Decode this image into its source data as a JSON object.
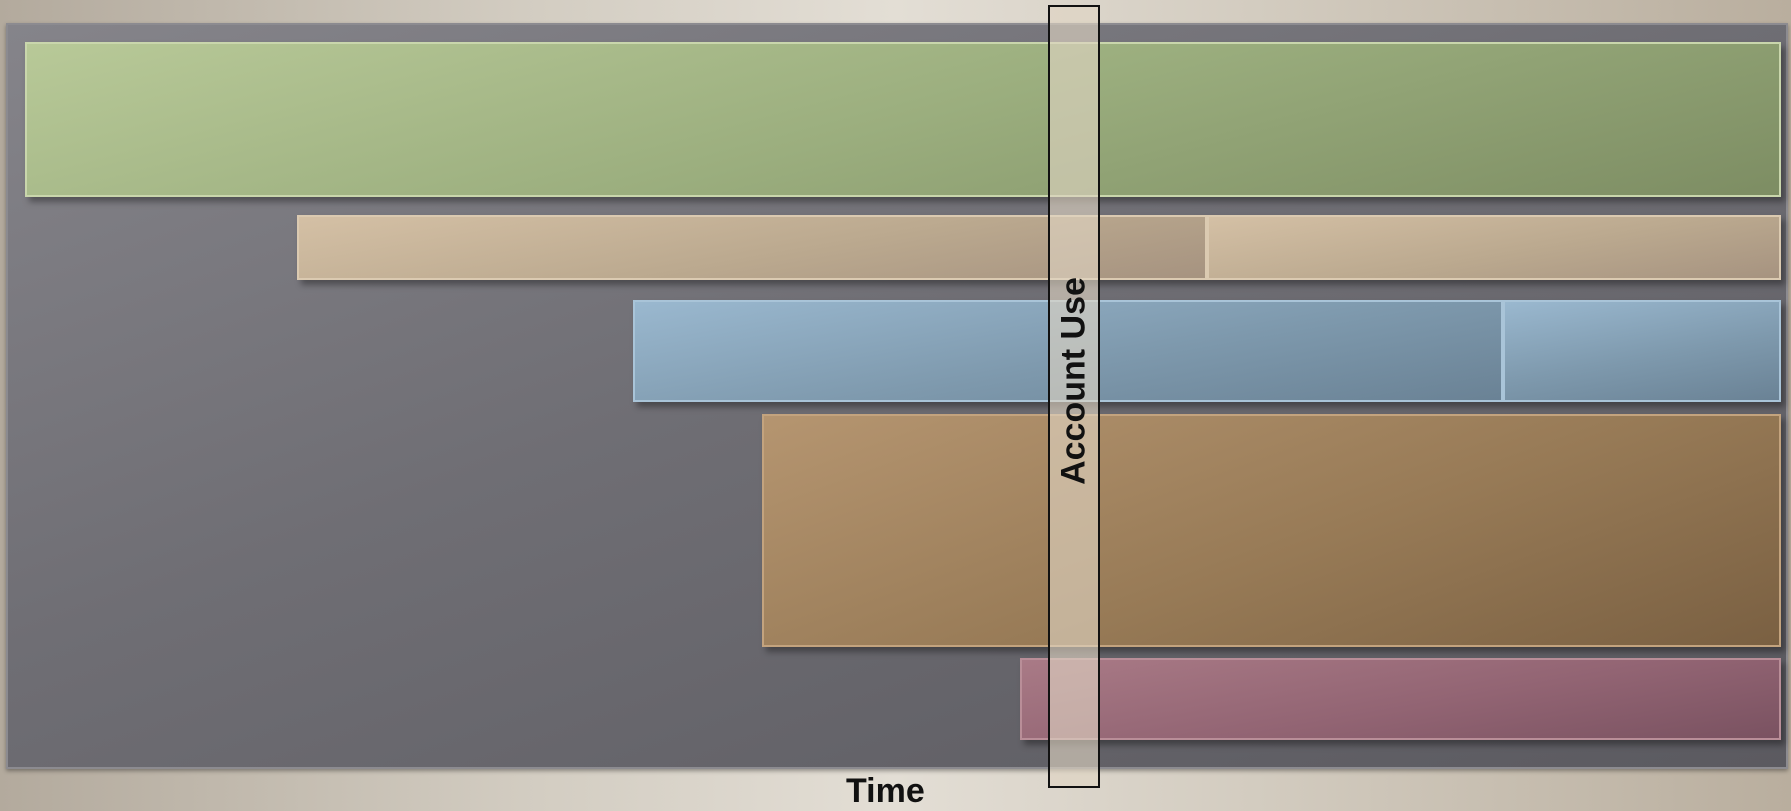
{
  "diagram": {
    "account_label": "Account Use",
    "time_label": "Time",
    "bars": [
      {
        "color": "#a4b687",
        "segments": 1
      },
      {
        "color": "#c4b298",
        "segments": 2
      },
      {
        "color": "#8aa6bc",
        "segments": 2
      },
      {
        "color": "#a58661",
        "segments": 1
      },
      {
        "color": "#9a6c7b",
        "segments": 1
      }
    ]
  }
}
